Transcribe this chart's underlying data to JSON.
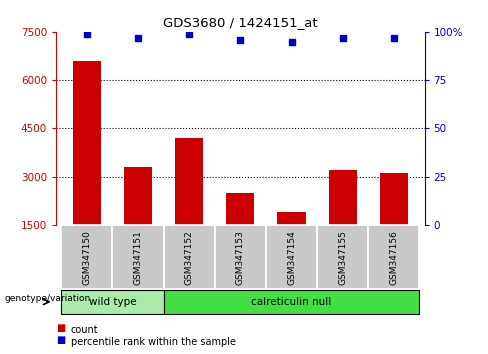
{
  "title": "GDS3680 / 1424151_at",
  "samples": [
    "GSM347150",
    "GSM347151",
    "GSM347152",
    "GSM347153",
    "GSM347154",
    "GSM347155",
    "GSM347156"
  ],
  "counts": [
    6600,
    3300,
    4200,
    2500,
    1900,
    3200,
    3100
  ],
  "percentiles": [
    99,
    97,
    99,
    96,
    95,
    97,
    97
  ],
  "ylim_left": [
    1500,
    7500
  ],
  "ylim_right": [
    0,
    100
  ],
  "yticks_left": [
    1500,
    3000,
    4500,
    6000,
    7500
  ],
  "yticks_right": [
    0,
    25,
    50,
    75,
    100
  ],
  "bar_color": "#cc0000",
  "dot_color": "#0000cc",
  "tick_area_bg": "#c8c8c8",
  "wild_type_color": "#aaeaaa",
  "calreticulin_color": "#44dd44",
  "wild_type_label": "wild type",
  "calreticulin_label": "calreticulin null",
  "genotype_label": "genotype/variation",
  "legend_count": "count",
  "legend_percentile": "percentile rank within the sample",
  "wild_type_samples": 2,
  "calreticulin_samples": 5,
  "bar_width": 0.55,
  "figsize": [
    4.88,
    3.54
  ],
  "dpi": 100
}
